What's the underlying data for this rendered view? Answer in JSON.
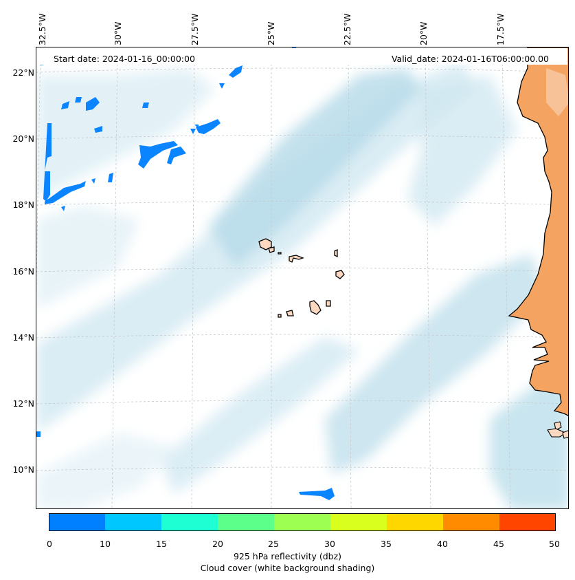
{
  "header": {
    "start_date": "Start date: 2024-01-16_00:00:00",
    "valid_date": "Valid_date: 2024-01-16T06:00:00.00"
  },
  "longitude_labels": [
    "32.5°W",
    "30°W",
    "27.5°W",
    "25°W",
    "22.5°W",
    "20°W",
    "17.5°W"
  ],
  "latitude_labels": [
    "22°N",
    "20°N",
    "18°N",
    "16°N",
    "14°N",
    "12°N",
    "10°N"
  ],
  "colorbar": {
    "ticks": [
      "0",
      "10",
      "15",
      "20",
      "25",
      "30",
      "35",
      "40",
      "45",
      "50"
    ],
    "colors": [
      "#0080ff",
      "#00c8ff",
      "#1effd4",
      "#5cff8a",
      "#9cff52",
      "#d8ff1e",
      "#ffd700",
      "#ff8c00",
      "#ff4500"
    ],
    "label_line1": "925 hPa reflectivity (dbz)",
    "label_line2": "Cloud cover (white background shading)"
  },
  "colors": {
    "ocean_cloud": "#add8e6",
    "land_africa": "#f4a460",
    "land_islands": "#fbd8bf",
    "reflectivity_low": "#0080ff",
    "grid": "#c8c8c8"
  }
}
